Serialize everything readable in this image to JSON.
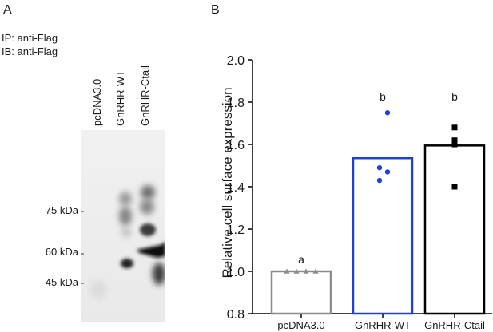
{
  "panel_a": {
    "letter": "A",
    "ip_label": "IP: anti-Flag",
    "ib_label": "IB: anti-Flag",
    "lanes": [
      "pcDNA3.0",
      "GnRHR-WT",
      "GnRHR-Ctail"
    ],
    "markers": [
      "75 kDa",
      "60 kDa",
      "45 kDa"
    ]
  },
  "panel_b": {
    "letter": "B"
  },
  "chart_data": {
    "type": "bar",
    "ylabel": "Relative cell surface expression",
    "ylim": [
      0.8,
      2.0
    ],
    "yticks": [
      0.8,
      1.0,
      1.2,
      1.4,
      1.6,
      1.8,
      2.0
    ],
    "categories": [
      "pcDNA3.0",
      "GnRHR-WT",
      "GnRHR-Ctail"
    ],
    "values": [
      1.0,
      1.535,
      1.595
    ],
    "significance_letters": [
      "a",
      "b",
      "b"
    ],
    "bar_colors": [
      "#8c8c8c",
      "#1f3fd6",
      "#000000"
    ],
    "point_markers": [
      "triangle",
      "circle",
      "square"
    ],
    "points": [
      [
        1.0,
        1.0,
        1.0,
        1.0
      ],
      [
        1.75,
        1.49,
        1.47,
        1.43
      ],
      [
        1.68,
        1.62,
        1.6,
        1.4
      ]
    ]
  }
}
